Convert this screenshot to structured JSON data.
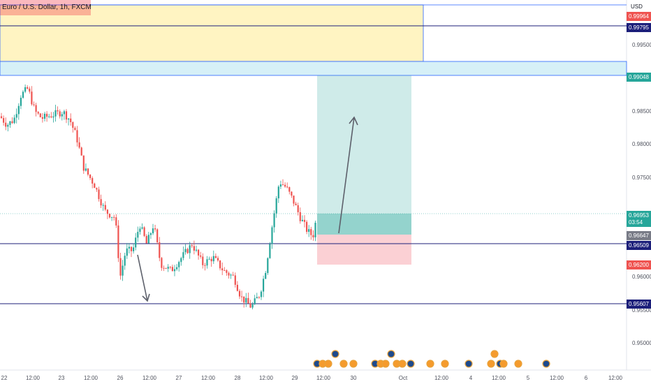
{
  "symbol_title": "Euro / U.S. Dollar, 1h, FXCM",
  "currency": "USD",
  "colors": {
    "up": "#26a69a",
    "down": "#ef5350",
    "hline": "#1c1f7a",
    "supply_zone": "#fff4c2",
    "zone_border": "#2962ff",
    "profit_zone": "#26a69a",
    "loss_zone": "#f7a1a9",
    "arrow": "#5d606b"
  },
  "price_axis": {
    "ticks": [
      "0.99500",
      "0.98500",
      "0.98000",
      "0.97500",
      "0.96000",
      "0.95500",
      "0.95000"
    ],
    "tags": [
      {
        "text": "0.99964",
        "color": "#ef5350"
      },
      {
        "text": "0.99795",
        "color": "#1c1f7a"
      },
      {
        "text": "0.99048",
        "color": "#26a69a"
      },
      {
        "text": "0.96953",
        "color": "#26a69a"
      },
      {
        "text": "03:54",
        "color": "#26a69a"
      },
      {
        "text": "0.96647",
        "color": "#787b86"
      },
      {
        "text": "0.96509",
        "color": "#1c1f7a"
      },
      {
        "text": "0.96200",
        "color": "#ef5350"
      },
      {
        "text": "0.95607",
        "color": "#1c1f7a"
      }
    ]
  },
  "time_axis": {
    "labels": [
      "22",
      "12:00",
      "23",
      "12:00",
      "26",
      "12:00",
      "27",
      "12:00",
      "28",
      "12:00",
      "29",
      "12:00",
      "30",
      "Oct",
      "12:00",
      "4",
      "12:00",
      "5",
      "12:00",
      "6",
      "12:00"
    ]
  },
  "icon": "economic-event-flag-icon"
}
